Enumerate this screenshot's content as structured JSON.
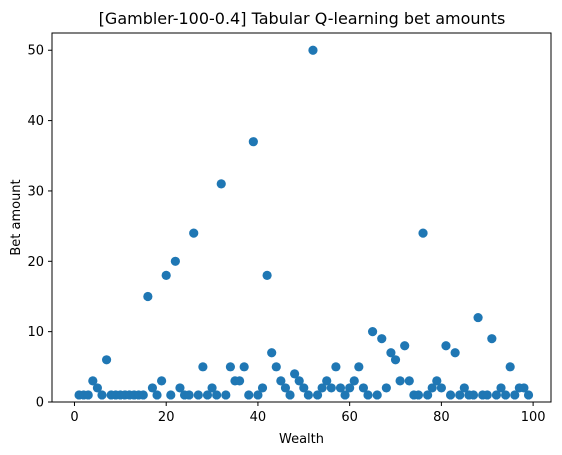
{
  "chart_data": {
    "type": "scatter",
    "title": "[Gambler-100-0.4] Tabular Q-learning bet amounts",
    "xlabel": "Wealth",
    "ylabel": "Bet amount",
    "xlim": [
      -4.9,
      103.9
    ],
    "ylim": [
      0,
      52.45
    ],
    "xticks": [
      0,
      20,
      40,
      60,
      80,
      100
    ],
    "yticks": [
      0,
      10,
      20,
      30,
      40,
      50
    ],
    "grid": false,
    "legend": "none",
    "marker_color": "#1f77b4",
    "series": [
      {
        "x": [
          1,
          2,
          3,
          4,
          5,
          6,
          7,
          8,
          9,
          10,
          11,
          12,
          13,
          14,
          15,
          16,
          17,
          18,
          19,
          20,
          21,
          22,
          23,
          24,
          25,
          26,
          27,
          28,
          29,
          30,
          31,
          32,
          33,
          34,
          35,
          36,
          37,
          38,
          39,
          40,
          41,
          42,
          43,
          44,
          45,
          46,
          47,
          48,
          49,
          50,
          51,
          52,
          53,
          54,
          55,
          56,
          57,
          58,
          59,
          60,
          61,
          62,
          63,
          64,
          65,
          66,
          67,
          68,
          69,
          70,
          71,
          72,
          73,
          74,
          75,
          76,
          77,
          78,
          79,
          80,
          81,
          82,
          83,
          84,
          85,
          86,
          87,
          88,
          89,
          90,
          91,
          92,
          93,
          94,
          95,
          96,
          97,
          98,
          99
        ],
        "y": [
          1,
          1,
          1,
          3,
          2,
          1,
          6,
          1,
          1,
          1,
          1,
          1,
          1,
          1,
          1,
          15,
          2,
          1,
          3,
          18,
          1,
          20,
          2,
          1,
          1,
          24,
          1,
          5,
          1,
          2,
          1,
          31,
          1,
          5,
          3,
          3,
          5,
          1,
          37,
          1,
          2,
          18,
          7,
          5,
          3,
          2,
          1,
          4,
          3,
          2,
          1,
          50,
          1,
          2,
          3,
          2,
          5,
          2,
          1,
          2,
          3,
          5,
          2,
          1,
          10,
          1,
          9,
          2,
          7,
          6,
          3,
          8,
          3,
          1,
          1,
          24,
          1,
          2,
          3,
          2,
          8,
          1,
          7,
          1,
          2,
          1,
          1,
          12,
          1,
          1,
          9,
          1,
          2,
          1,
          5,
          1,
          2,
          2,
          1
        ]
      }
    ]
  }
}
